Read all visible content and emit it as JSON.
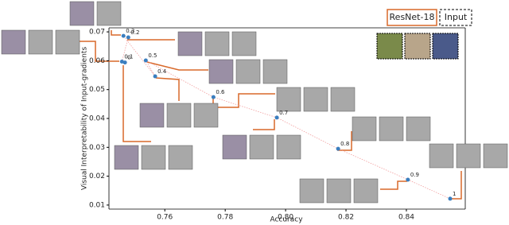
{
  "chart_data": {
    "type": "line",
    "xlabel": "Accuracy",
    "ylabel": "Visual Interpretability of Input-gradients",
    "x": [
      0.7468,
      0.7458,
      0.7479,
      0.7463,
      0.7568,
      0.7537,
      0.7761,
      0.7971,
      0.8174,
      0.8405,
      0.8545
    ],
    "series": [
      {
        "values": [
          0.0594,
          0.0597,
          0.0681,
          0.0686,
          0.0546,
          0.0601,
          0.0474,
          0.0403,
          0.0295,
          0.0188,
          0.0122
        ],
        "color": "#3a7ebf",
        "point_labels": [
          "0",
          "0.1",
          "0.2",
          "0.3",
          "0.4",
          "0.5",
          "0.6",
          "0.7",
          "0.8",
          "0.9",
          "1"
        ]
      }
    ],
    "line_color": "#f2a0a0",
    "xlim": [
      0.7415,
      0.8595
    ],
    "ylim": [
      0.0086,
      0.0714
    ],
    "xticks": [
      0.76,
      0.78,
      {
        "value": 0.8,
        "label": "0.80"
      },
      0.82,
      0.84
    ],
    "yticks": [
      0.01,
      0.02,
      0.03,
      0.04,
      0.05,
      0.06,
      0.07
    ],
    "legend": [
      "ResNet-18",
      "Input"
    ]
  }
}
